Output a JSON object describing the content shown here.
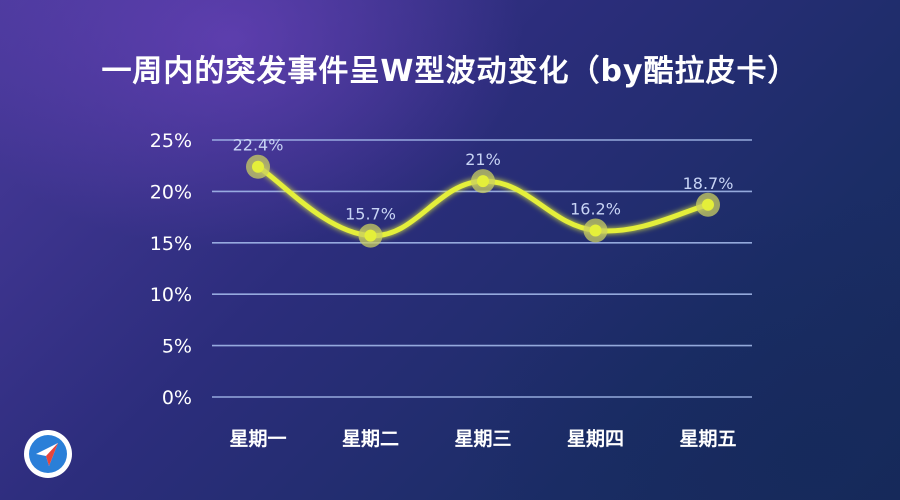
{
  "title": "一周内的突发事件呈W型波动变化（by酷拉皮卡）",
  "logo_icon": "compass-navigation-icon",
  "colors": {
    "line": "#e4ef3a",
    "marker_halo": "#c9cf62",
    "grid": "#a9bff0",
    "data_label": "#c8d4f5"
  },
  "chart_data": {
    "type": "line",
    "categories": [
      "星期一",
      "星期二",
      "星期三",
      "星期四",
      "星期五"
    ],
    "values": [
      22.4,
      15.7,
      21,
      16.2,
      18.7
    ],
    "data_labels": [
      "22.4%",
      "15.7%",
      "21%",
      "16.2%",
      "18.7%"
    ],
    "y_ticks": [
      "0%",
      "5%",
      "10%",
      "15%",
      "20%",
      "25%"
    ],
    "y_tick_values": [
      0,
      5,
      10,
      15,
      20,
      25
    ],
    "ylim": [
      0,
      25
    ],
    "grid": true,
    "smooth": true,
    "legend": "none"
  }
}
